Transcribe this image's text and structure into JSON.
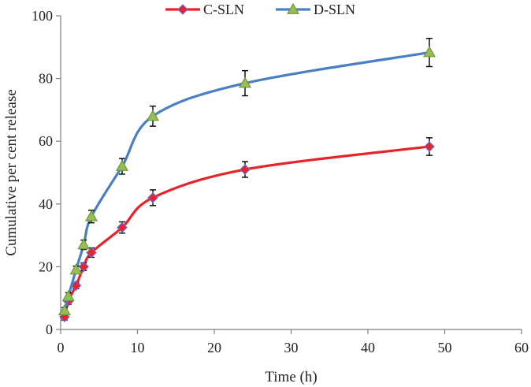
{
  "chart_data": {
    "type": "line",
    "title": "",
    "xlabel": "Time  (h)",
    "ylabel": "Cumulative per cent release",
    "xlim": [
      0,
      60
    ],
    "ylim": [
      0,
      100
    ],
    "xticks": [
      0,
      10,
      20,
      30,
      40,
      50,
      60
    ],
    "yticks": [
      0,
      20,
      40,
      60,
      80,
      100
    ],
    "grid": false,
    "legend_position": "top",
    "x": [
      0.5,
      1,
      2,
      3,
      4,
      8,
      12,
      24,
      48
    ],
    "series": [
      {
        "name": "C-SLN",
        "color": "#e8232a",
        "marker": "diamond",
        "marker_fill": "#e8232a",
        "marker_edge": "#6b6bd6",
        "values": [
          4,
          9,
          14,
          20,
          24.5,
          32.5,
          42,
          51,
          58.3
        ],
        "errors": [
          1,
          1,
          1,
          1.2,
          1.5,
          1.8,
          2.5,
          2.5,
          2.8
        ]
      },
      {
        "name": "D-SLN",
        "color": "#4a7fc4",
        "marker": "triangle",
        "marker_fill": "#9bbb59",
        "marker_edge": "#6a9a3a",
        "values": [
          6,
          10.5,
          19,
          27,
          36,
          52,
          68,
          78.5,
          88.3
        ],
        "errors": [
          1,
          1.2,
          1.2,
          1.5,
          2,
          2.5,
          3.2,
          4,
          4.5
        ]
      }
    ]
  }
}
